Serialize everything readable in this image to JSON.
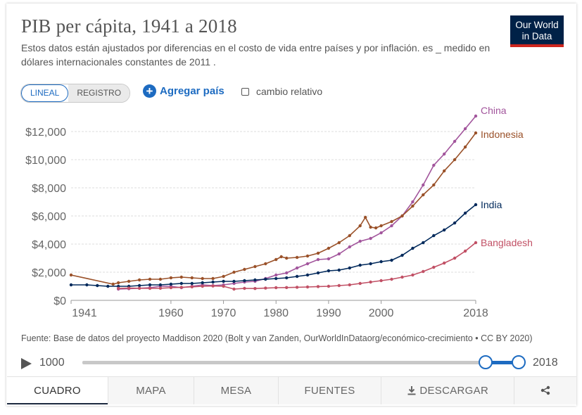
{
  "header": {
    "title": "PIB per cápita, 1941 a 2018",
    "subtitle": "Estos datos están ajustados por diferencias en el costo de vida entre países y por inflación. es _ medido en dólares internacionales constantes de 2011 .",
    "logo_line1": "Our World",
    "logo_line2": "in Data"
  },
  "controls": {
    "scale_linear": "LINEAL",
    "scale_log": "REGISTRO",
    "add_country": "Agregar país",
    "relative_change": "cambio relativo"
  },
  "source": "Fuente: Base de datos del proyecto Maddison 2020 (Bolt y van Zanden,    OurWorldInDataorg/económico-crecimiento • CC BY 2020)",
  "timeline": {
    "start": "1000",
    "end": "2018"
  },
  "tabs": [
    "CUADRO",
    "MAPA",
    "MESA",
    "FUENTES",
    "DESCARGAR",
    "share"
  ],
  "colors": {
    "china": "#a2559c",
    "indonesia": "#9a5129",
    "india": "#00295b",
    "bangladesh": "#c15065",
    "accent": "#1d6bc1"
  },
  "chart_data": {
    "type": "line",
    "title": "PIB per cápita, 1941 a 2018",
    "xlabel": "",
    "ylabel": "",
    "xlim": [
      1941,
      2018
    ],
    "ylim": [
      0,
      12000
    ],
    "x_ticks": [
      1941,
      1960,
      1970,
      1980,
      1990,
      2000,
      2018
    ],
    "x_tick_labels": [
      "1941",
      "1960",
      "1970",
      "1980",
      "1990",
      "2000",
      "2018"
    ],
    "y_ticks": [
      0,
      2000,
      4000,
      6000,
      8000,
      10000,
      12000
    ],
    "y_tick_labels": [
      "$0",
      "$2,000",
      "$4,000",
      "$6,000",
      "$8,000",
      "$10,000",
      "$12,000"
    ],
    "series": [
      {
        "name": "China",
        "color": "#a2559c",
        "points": [
          [
            1950,
            800
          ],
          [
            1952,
            830
          ],
          [
            1954,
            860
          ],
          [
            1956,
            900
          ],
          [
            1958,
            1000
          ],
          [
            1960,
            1000
          ],
          [
            1962,
            900
          ],
          [
            1964,
            1000
          ],
          [
            1966,
            1100
          ],
          [
            1968,
            1050
          ],
          [
            1970,
            1100
          ],
          [
            1972,
            1200
          ],
          [
            1974,
            1300
          ],
          [
            1976,
            1350
          ],
          [
            1978,
            1550
          ],
          [
            1980,
            1800
          ],
          [
            1982,
            1950
          ],
          [
            1984,
            2300
          ],
          [
            1986,
            2600
          ],
          [
            1988,
            2900
          ],
          [
            1990,
            2950
          ],
          [
            1992,
            3300
          ],
          [
            1994,
            3800
          ],
          [
            1996,
            4200
          ],
          [
            1998,
            4400
          ],
          [
            2000,
            4800
          ],
          [
            2002,
            5300
          ],
          [
            2004,
            6000
          ],
          [
            2006,
            7000
          ],
          [
            2008,
            8200
          ],
          [
            2010,
            9600
          ],
          [
            2012,
            10400
          ],
          [
            2014,
            11300
          ],
          [
            2016,
            12200
          ],
          [
            2018,
            13100
          ]
        ]
      },
      {
        "name": "Indonesia",
        "color": "#9a5129",
        "points": [
          [
            1941,
            1800
          ],
          [
            1949,
            1150
          ],
          [
            1950,
            1250
          ],
          [
            1952,
            1350
          ],
          [
            1954,
            1450
          ],
          [
            1956,
            1500
          ],
          [
            1958,
            1500
          ],
          [
            1960,
            1600
          ],
          [
            1962,
            1650
          ],
          [
            1964,
            1600
          ],
          [
            1966,
            1550
          ],
          [
            1968,
            1550
          ],
          [
            1970,
            1700
          ],
          [
            1972,
            2000
          ],
          [
            1974,
            2200
          ],
          [
            1976,
            2400
          ],
          [
            1978,
            2600
          ],
          [
            1980,
            2900
          ],
          [
            1981,
            3100
          ],
          [
            1982,
            3000
          ],
          [
            1984,
            3050
          ],
          [
            1986,
            3150
          ],
          [
            1988,
            3350
          ],
          [
            1990,
            3700
          ],
          [
            1992,
            4100
          ],
          [
            1994,
            4600
          ],
          [
            1996,
            5300
          ],
          [
            1997,
            5900
          ],
          [
            1998,
            5200
          ],
          [
            1999,
            5150
          ],
          [
            2000,
            5300
          ],
          [
            2002,
            5600
          ],
          [
            2004,
            6000
          ],
          [
            2006,
            6700
          ],
          [
            2008,
            7500
          ],
          [
            2010,
            8200
          ],
          [
            2012,
            9200
          ],
          [
            2014,
            10000
          ],
          [
            2016,
            10900
          ],
          [
            2018,
            11900
          ]
        ]
      },
      {
        "name": "India",
        "color": "#00295b",
        "points": [
          [
            1941,
            1100
          ],
          [
            1944,
            1100
          ],
          [
            1946,
            1050
          ],
          [
            1948,
            1000
          ],
          [
            1950,
            1000
          ],
          [
            1952,
            1000
          ],
          [
            1954,
            1050
          ],
          [
            1956,
            1100
          ],
          [
            1958,
            1100
          ],
          [
            1960,
            1150
          ],
          [
            1962,
            1200
          ],
          [
            1964,
            1200
          ],
          [
            1966,
            1250
          ],
          [
            1968,
            1300
          ],
          [
            1970,
            1350
          ],
          [
            1972,
            1350
          ],
          [
            1974,
            1400
          ],
          [
            1976,
            1450
          ],
          [
            1978,
            1500
          ],
          [
            1980,
            1550
          ],
          [
            1982,
            1600
          ],
          [
            1984,
            1700
          ],
          [
            1986,
            1800
          ],
          [
            1988,
            1950
          ],
          [
            1990,
            2100
          ],
          [
            1992,
            2150
          ],
          [
            1994,
            2300
          ],
          [
            1996,
            2500
          ],
          [
            1998,
            2600
          ],
          [
            2000,
            2750
          ],
          [
            2002,
            2850
          ],
          [
            2004,
            3200
          ],
          [
            2006,
            3700
          ],
          [
            2008,
            4100
          ],
          [
            2010,
            4600
          ],
          [
            2012,
            5000
          ],
          [
            2014,
            5500
          ],
          [
            2016,
            6200
          ],
          [
            2018,
            6800
          ]
        ]
      },
      {
        "name": "Bangladesh",
        "color": "#c15065",
        "points": [
          [
            1950,
            850
          ],
          [
            1952,
            870
          ],
          [
            1954,
            860
          ],
          [
            1956,
            850
          ],
          [
            1958,
            860
          ],
          [
            1960,
            900
          ],
          [
            1962,
            930
          ],
          [
            1964,
            960
          ],
          [
            1966,
            1000
          ],
          [
            1968,
            1020
          ],
          [
            1970,
            1000
          ],
          [
            1972,
            800
          ],
          [
            1974,
            850
          ],
          [
            1976,
            840
          ],
          [
            1978,
            870
          ],
          [
            1980,
            900
          ],
          [
            1982,
            910
          ],
          [
            1984,
            930
          ],
          [
            1986,
            950
          ],
          [
            1988,
            980
          ],
          [
            1990,
            1000
          ],
          [
            1992,
            1050
          ],
          [
            1994,
            1100
          ],
          [
            1996,
            1200
          ],
          [
            1998,
            1300
          ],
          [
            2000,
            1400
          ],
          [
            2002,
            1500
          ],
          [
            2004,
            1650
          ],
          [
            2006,
            1800
          ],
          [
            2008,
            2050
          ],
          [
            2010,
            2350
          ],
          [
            2012,
            2650
          ],
          [
            2014,
            3000
          ],
          [
            2016,
            3500
          ],
          [
            2018,
            4100
          ]
        ]
      }
    ]
  }
}
